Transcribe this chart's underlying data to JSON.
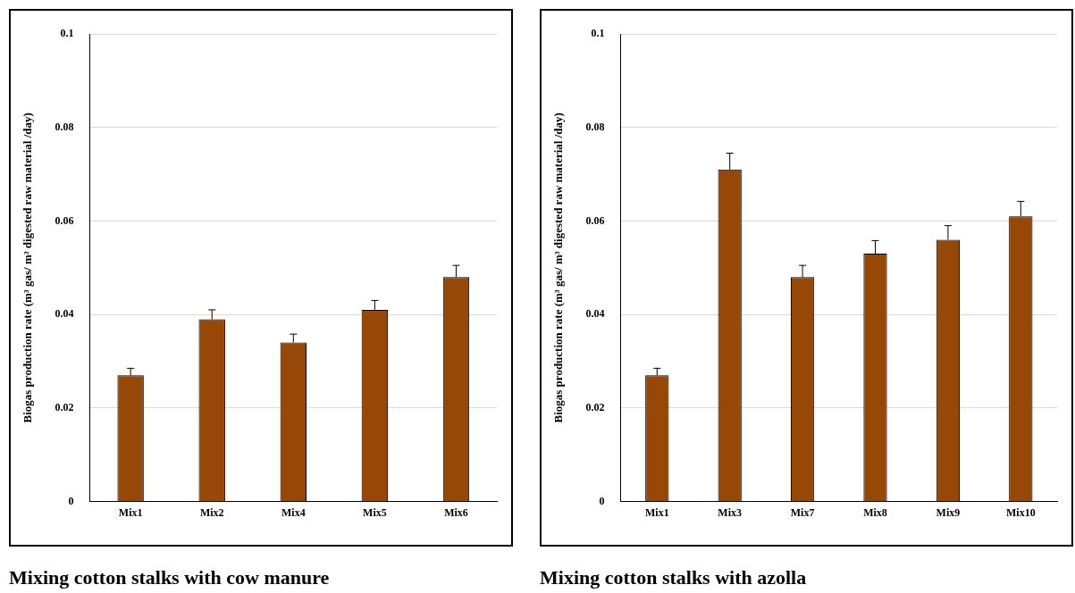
{
  "chart_data": [
    {
      "type": "bar",
      "title": "Mixing cotton stalks with cow manure",
      "ylabel": "Biogas production rate (m³ gas/ m³ digested raw material /day)",
      "categories": [
        "Mix1",
        "Mix2",
        "Mix4",
        "Mix5",
        "Mix6"
      ],
      "values": [
        0.027,
        0.039,
        0.034,
        0.041,
        0.048
      ],
      "errors": [
        0.0015,
        0.002,
        0.0018,
        0.002,
        0.0025
      ],
      "color": "#974706",
      "ylim": [
        0,
        0.1
      ],
      "yticks": [
        0,
        0.02,
        0.04,
        0.06,
        0.08,
        0.1
      ],
      "grid": "y",
      "legend": false
    },
    {
      "type": "bar",
      "title": "Mixing cotton stalks with azolla",
      "ylabel": "Biogas production rate (m³ gas/ m³ digested raw material /day)",
      "categories": [
        "Mix1",
        "Mix3",
        "Mix7",
        "Mix8",
        "Mix9",
        "Mix10"
      ],
      "values": [
        0.027,
        0.071,
        0.048,
        0.053,
        0.056,
        0.061
      ],
      "errors": [
        0.0015,
        0.0035,
        0.0025,
        0.0028,
        0.003,
        0.0032
      ],
      "color": "#974706",
      "ylim": [
        0,
        0.1
      ],
      "yticks": [
        0,
        0.02,
        0.04,
        0.06,
        0.08,
        0.1
      ],
      "grid": "y",
      "legend": false
    }
  ]
}
